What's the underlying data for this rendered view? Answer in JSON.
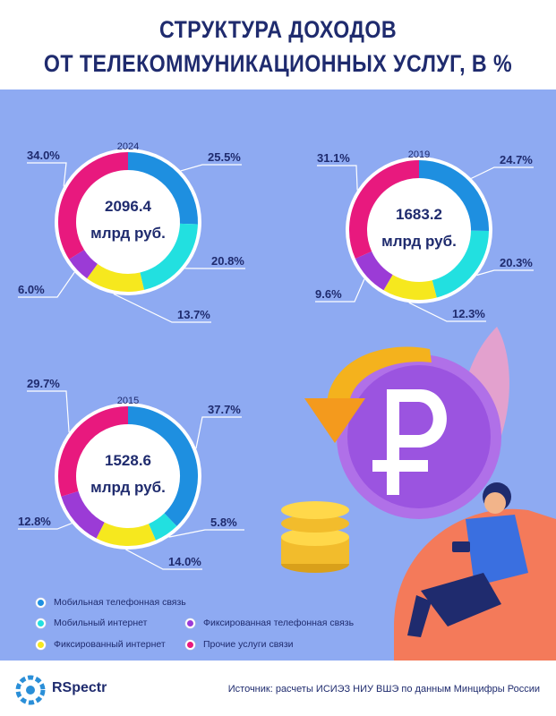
{
  "header": {
    "title_line1": "СТРУКТУРА ДОХОДОВ",
    "title_line2": "ОТ ТЕЛЕКОММУНИКАЦИОННЫХ УСЛУГ, В %"
  },
  "colors": {
    "background_panel": "#8eaaf2",
    "title": "#1f2b6e",
    "mobile_voice": "#1e8fe0",
    "mobile_internet": "#22e0e0",
    "fixed_voice": "#9b3bd6",
    "fixed_internet": "#f6e81e",
    "other": "#e8197e"
  },
  "chart_data": [
    {
      "type": "pie",
      "year": "2024",
      "total_line1": "2096.4",
      "total_line2": "млрд руб.",
      "slices": [
        {
          "category": "Мобильная телефонная связь",
          "value": 25.5,
          "label": "25.5%"
        },
        {
          "category": "Мобильный интернет",
          "value": 20.8,
          "label": "20.8%"
        },
        {
          "category": "Фиксированный интернет",
          "value": 13.7,
          "label": "13.7%"
        },
        {
          "category": "Фиксированная телефонная связь",
          "value": 6.0,
          "label": "6.0%"
        },
        {
          "category": "Прочие услуги связи",
          "value": 34.0,
          "label": "34.0%"
        }
      ]
    },
    {
      "type": "pie",
      "year": "2019",
      "total_line1": "1683.2",
      "total_line2": "млрд руб.",
      "slices": [
        {
          "category": "Мобильная телефонная связь",
          "value": 24.7,
          "label": "24.7%"
        },
        {
          "category": "Мобильный интернет",
          "value": 20.3,
          "label": "20.3%"
        },
        {
          "category": "Фиксированный интернет",
          "value": 12.3,
          "label": "12.3%"
        },
        {
          "category": "Фиксированная телефонная связь",
          "value": 9.6,
          "label": "9.6%"
        },
        {
          "category": "Прочие услуги связи",
          "value": 31.1,
          "label": "31.1%"
        }
      ]
    },
    {
      "type": "pie",
      "year": "2015",
      "total_line1": "1528.6",
      "total_line2": "млрд руб.",
      "slices": [
        {
          "category": "Мобильная телефонная связь",
          "value": 37.7,
          "label": "37.7%"
        },
        {
          "category": "Мобильный интернет",
          "value": 5.8,
          "label": "5.8%"
        },
        {
          "category": "Фиксированный интернет",
          "value": 14.0,
          "label": "14.0%"
        },
        {
          "category": "Фиксированная телефонная связь",
          "value": 12.8,
          "label": "12.8%"
        },
        {
          "category": "Прочие услуги связи",
          "value": 29.7,
          "label": "29.7%"
        }
      ]
    }
  ],
  "legend": [
    {
      "label": "Мобильная телефонная связь",
      "color": "#1e8fe0"
    },
    {
      "label": "Мобильный интернет",
      "color": "#22e0e0"
    },
    {
      "label": "Фиксированная телефонная связь",
      "color": "#9b3bd6"
    },
    {
      "label": "Фиксированный интернет",
      "color": "#f6e81e"
    },
    {
      "label": "Прочие услуги связи",
      "color": "#e8197e"
    }
  ],
  "illustration": {
    "symbol": "ruble-sign"
  },
  "footer": {
    "brand": "RSpectr",
    "source": "Источник: расчеты ИСИЭЗ НИУ ВШЭ по данным Минцифры России"
  }
}
